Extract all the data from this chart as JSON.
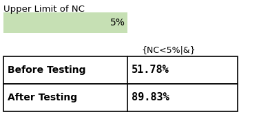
{
  "title": "Upper Limit of NC",
  "green_cell_value": "5%",
  "green_cell_color": "#c6e0b4",
  "col_header": "{NC<5%|&}",
  "rows": [
    {
      "label": "Before Testing",
      "value": "51.78%"
    },
    {
      "label": "After Testing",
      "value": "89.83%"
    }
  ],
  "bg_color": "#ffffff",
  "title_fontsize": 9.5,
  "header_fontsize": 9,
  "label_fontsize": 10,
  "value_fontsize": 11
}
